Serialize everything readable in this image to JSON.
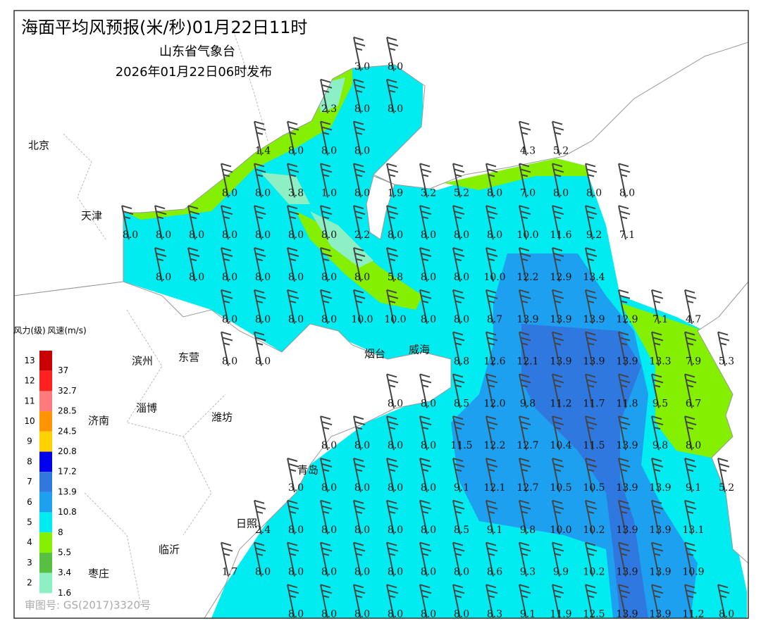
{
  "header": {
    "title": "海面平均风预报(米/秒)01月22日11时",
    "issuer": "山东省气象台",
    "issued": "2026年01月22日06时发布"
  },
  "cities": [
    "北京",
    "天津",
    "滨州",
    "东营",
    "烟台",
    "威海",
    "淄博",
    "潍坊",
    "济南",
    "青岛",
    "日照",
    "临沂",
    "枣庄"
  ],
  "legend": {
    "level_title": "风力(级)",
    "speed_title": "风速(m/s)",
    "levels": [
      "13",
      "12",
      "11",
      "10",
      "9",
      "8",
      "7",
      "6",
      "5",
      "4",
      "3",
      "2"
    ],
    "speeds": [
      "37",
      "32.7",
      "28.5",
      "24.5",
      "20.8",
      "17.2",
      "13.9",
      "10.8",
      "8",
      "5.5",
      "3.4",
      "1.6"
    ],
    "colors": [
      "#c80000",
      "#ff2020",
      "#ff7a7a",
      "#ff9400",
      "#ffd200",
      "#0000f0",
      "#2f78e0",
      "#1ea0f0",
      "#00ecf0",
      "#84f000",
      "#58c040",
      "#8cf0c4"
    ]
  },
  "wind": {
    "rows": [
      [
        null,
        null,
        null,
        null,
        null,
        null,
        null,
        "3.0",
        "8.0",
        null,
        null,
        null,
        null,
        null,
        null,
        null,
        null,
        null,
        null
      ],
      [
        null,
        null,
        null,
        null,
        null,
        null,
        "2.3",
        "8.0",
        "8.0",
        null,
        null,
        null,
        null,
        null,
        null,
        null,
        null,
        null,
        null
      ],
      [
        null,
        null,
        null,
        null,
        "1.4",
        "8.0",
        "8.0",
        "8.0",
        null,
        null,
        null,
        null,
        "4.3",
        "5.2",
        null,
        null,
        null,
        null,
        null
      ],
      [
        null,
        null,
        null,
        "8.0",
        "8.0",
        "3.8",
        "1.0",
        "8.0",
        "1.9",
        "3.2",
        "5.2",
        "8.0",
        "7.0",
        "8.0",
        "8.0",
        "8.0",
        null,
        null,
        null
      ],
      [
        "8.0",
        "8.0",
        "8.0",
        "8.0",
        "8.0",
        "8.0",
        "8.0",
        "2.2",
        "8.0",
        "8.0",
        "8.0",
        "8.0",
        "10.0",
        "11.6",
        "9.2",
        "7.1",
        null,
        null,
        null
      ],
      [
        null,
        "8.0",
        "8.0",
        "8.0",
        "8.0",
        "8.0",
        "8.0",
        "8.0",
        "5.8",
        "8.0",
        "8.0",
        "10.0",
        "12.2",
        "12.9",
        "13.4",
        null,
        null,
        null,
        null
      ],
      [
        null,
        null,
        null,
        "8.0",
        "8.0",
        "8.0",
        "8.0",
        "10.0",
        "10.0",
        "8.0",
        "8.0",
        "8.7",
        "13.9",
        "13.9",
        "13.9",
        "12.9",
        "7.1",
        "4.7",
        null
      ],
      [
        null,
        null,
        null,
        "8.0",
        "8.0",
        null,
        null,
        null,
        null,
        null,
        "8.8",
        "12.6",
        "12.1",
        "13.9",
        "13.9",
        "13.9",
        "13.3",
        "7.9",
        "5.3"
      ],
      [
        null,
        null,
        null,
        null,
        null,
        null,
        null,
        null,
        "8.0",
        "8.0",
        "8.5",
        "12.0",
        "9.8",
        "11.2",
        "11.7",
        "11.8",
        "9.5",
        "6.7",
        null
      ],
      [
        null,
        null,
        null,
        null,
        null,
        null,
        "8.0",
        "8.0",
        "8.0",
        "8.0",
        "11.5",
        "12.2",
        "12.7",
        "10.4",
        "11.5",
        "13.9",
        "9.8",
        "8.0",
        null
      ],
      [
        null,
        null,
        null,
        null,
        null,
        "3.0",
        "8.0",
        "8.0",
        "8.0",
        "8.0",
        "9.1",
        "12.1",
        "12.7",
        "10.5",
        "10.5",
        "13.9",
        "13.9",
        "9.1",
        "5.2"
      ],
      [
        null,
        null,
        null,
        null,
        "2.4",
        "8.0",
        "8.0",
        "8.0",
        "8.0",
        "8.0",
        "8.5",
        "9.1",
        "9.8",
        "10.0",
        "10.2",
        "13.9",
        "13.9",
        "13.1",
        null
      ],
      [
        null,
        null,
        null,
        "1.7",
        "8.0",
        "8.0",
        "8.0",
        "8.0",
        "8.0",
        "8.0",
        "8.0",
        "8.6",
        "9.3",
        "9.9",
        "10.2",
        "13.9",
        "13.9",
        "10.9",
        null
      ],
      [
        null,
        null,
        null,
        null,
        null,
        "8.0",
        "8.0",
        "8.0",
        "8.0",
        "8.0",
        "8.0",
        "8.3",
        "9.1",
        "11.9",
        "12.5",
        "13.9",
        "13.9",
        "11.2",
        "8.0"
      ]
    ]
  },
  "footer": "审图号: GS(2017)3320号"
}
